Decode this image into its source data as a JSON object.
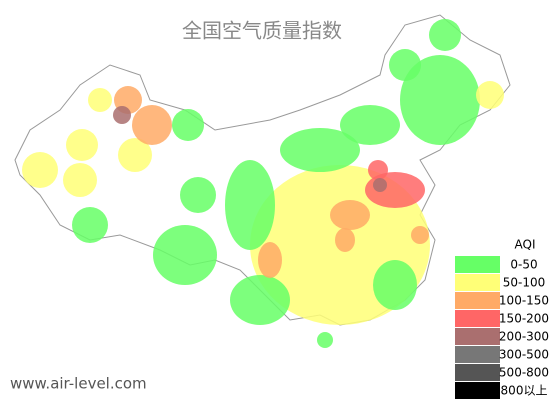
{
  "title": "全国空气质量指数",
  "legend": {
    "title": "AQI",
    "items": [
      {
        "label": "0-50",
        "color": "#66ff66"
      },
      {
        "label": "50-100",
        "color": "#ffff77"
      },
      {
        "label": "100-150",
        "color": "#ffaa66"
      },
      {
        "label": "150-200",
        "color": "#ff6666"
      },
      {
        "label": "200-300",
        "color": "#aa6f6f"
      },
      {
        "label": "300-500",
        "color": "#777777"
      },
      {
        "label": "500-800",
        "color": "#555555"
      },
      {
        "label": "800以上",
        "color": "#000000"
      }
    ]
  },
  "watermark": "www.air-level.com"
}
